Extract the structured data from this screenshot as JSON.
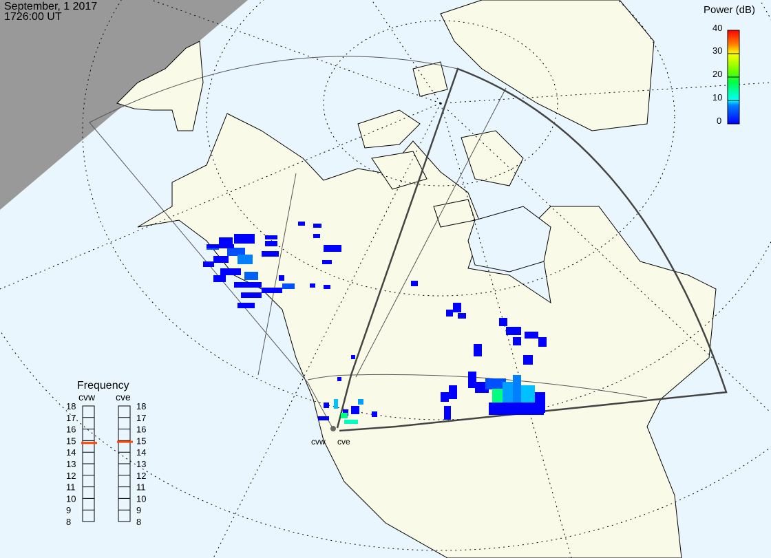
{
  "header": {
    "date": "September, 1 2017",
    "time": "1726:00 UT"
  },
  "colors": {
    "ocean": "#eaf6fe",
    "land": "#fafae8",
    "night": "#999999",
    "fan_outline": "#444444",
    "freq_marker": "#ff4500"
  },
  "power_scale": {
    "title": "Power (dB)",
    "ticks": [
      "0",
      "10",
      "20",
      "30",
      "40"
    ],
    "min": 0,
    "max": 40,
    "colormap": [
      "#0000ff",
      "#0080ff",
      "#00ffff",
      "#00ff40",
      "#80ff00",
      "#ffff00",
      "#ff8000",
      "#ff0000"
    ]
  },
  "frequency": {
    "title": "Frequency",
    "radars": [
      {
        "name": "cvw",
        "value_mhz": 14.8
      },
      {
        "name": "cve",
        "value_mhz": 14.9
      }
    ],
    "ticks": [
      "18",
      "17",
      "16",
      "15",
      "14",
      "13",
      "12",
      "11",
      "10",
      "9",
      "8"
    ]
  },
  "map": {
    "radar_sites": [
      {
        "label": "cvw"
      },
      {
        "label": "cve"
      }
    ]
  }
}
